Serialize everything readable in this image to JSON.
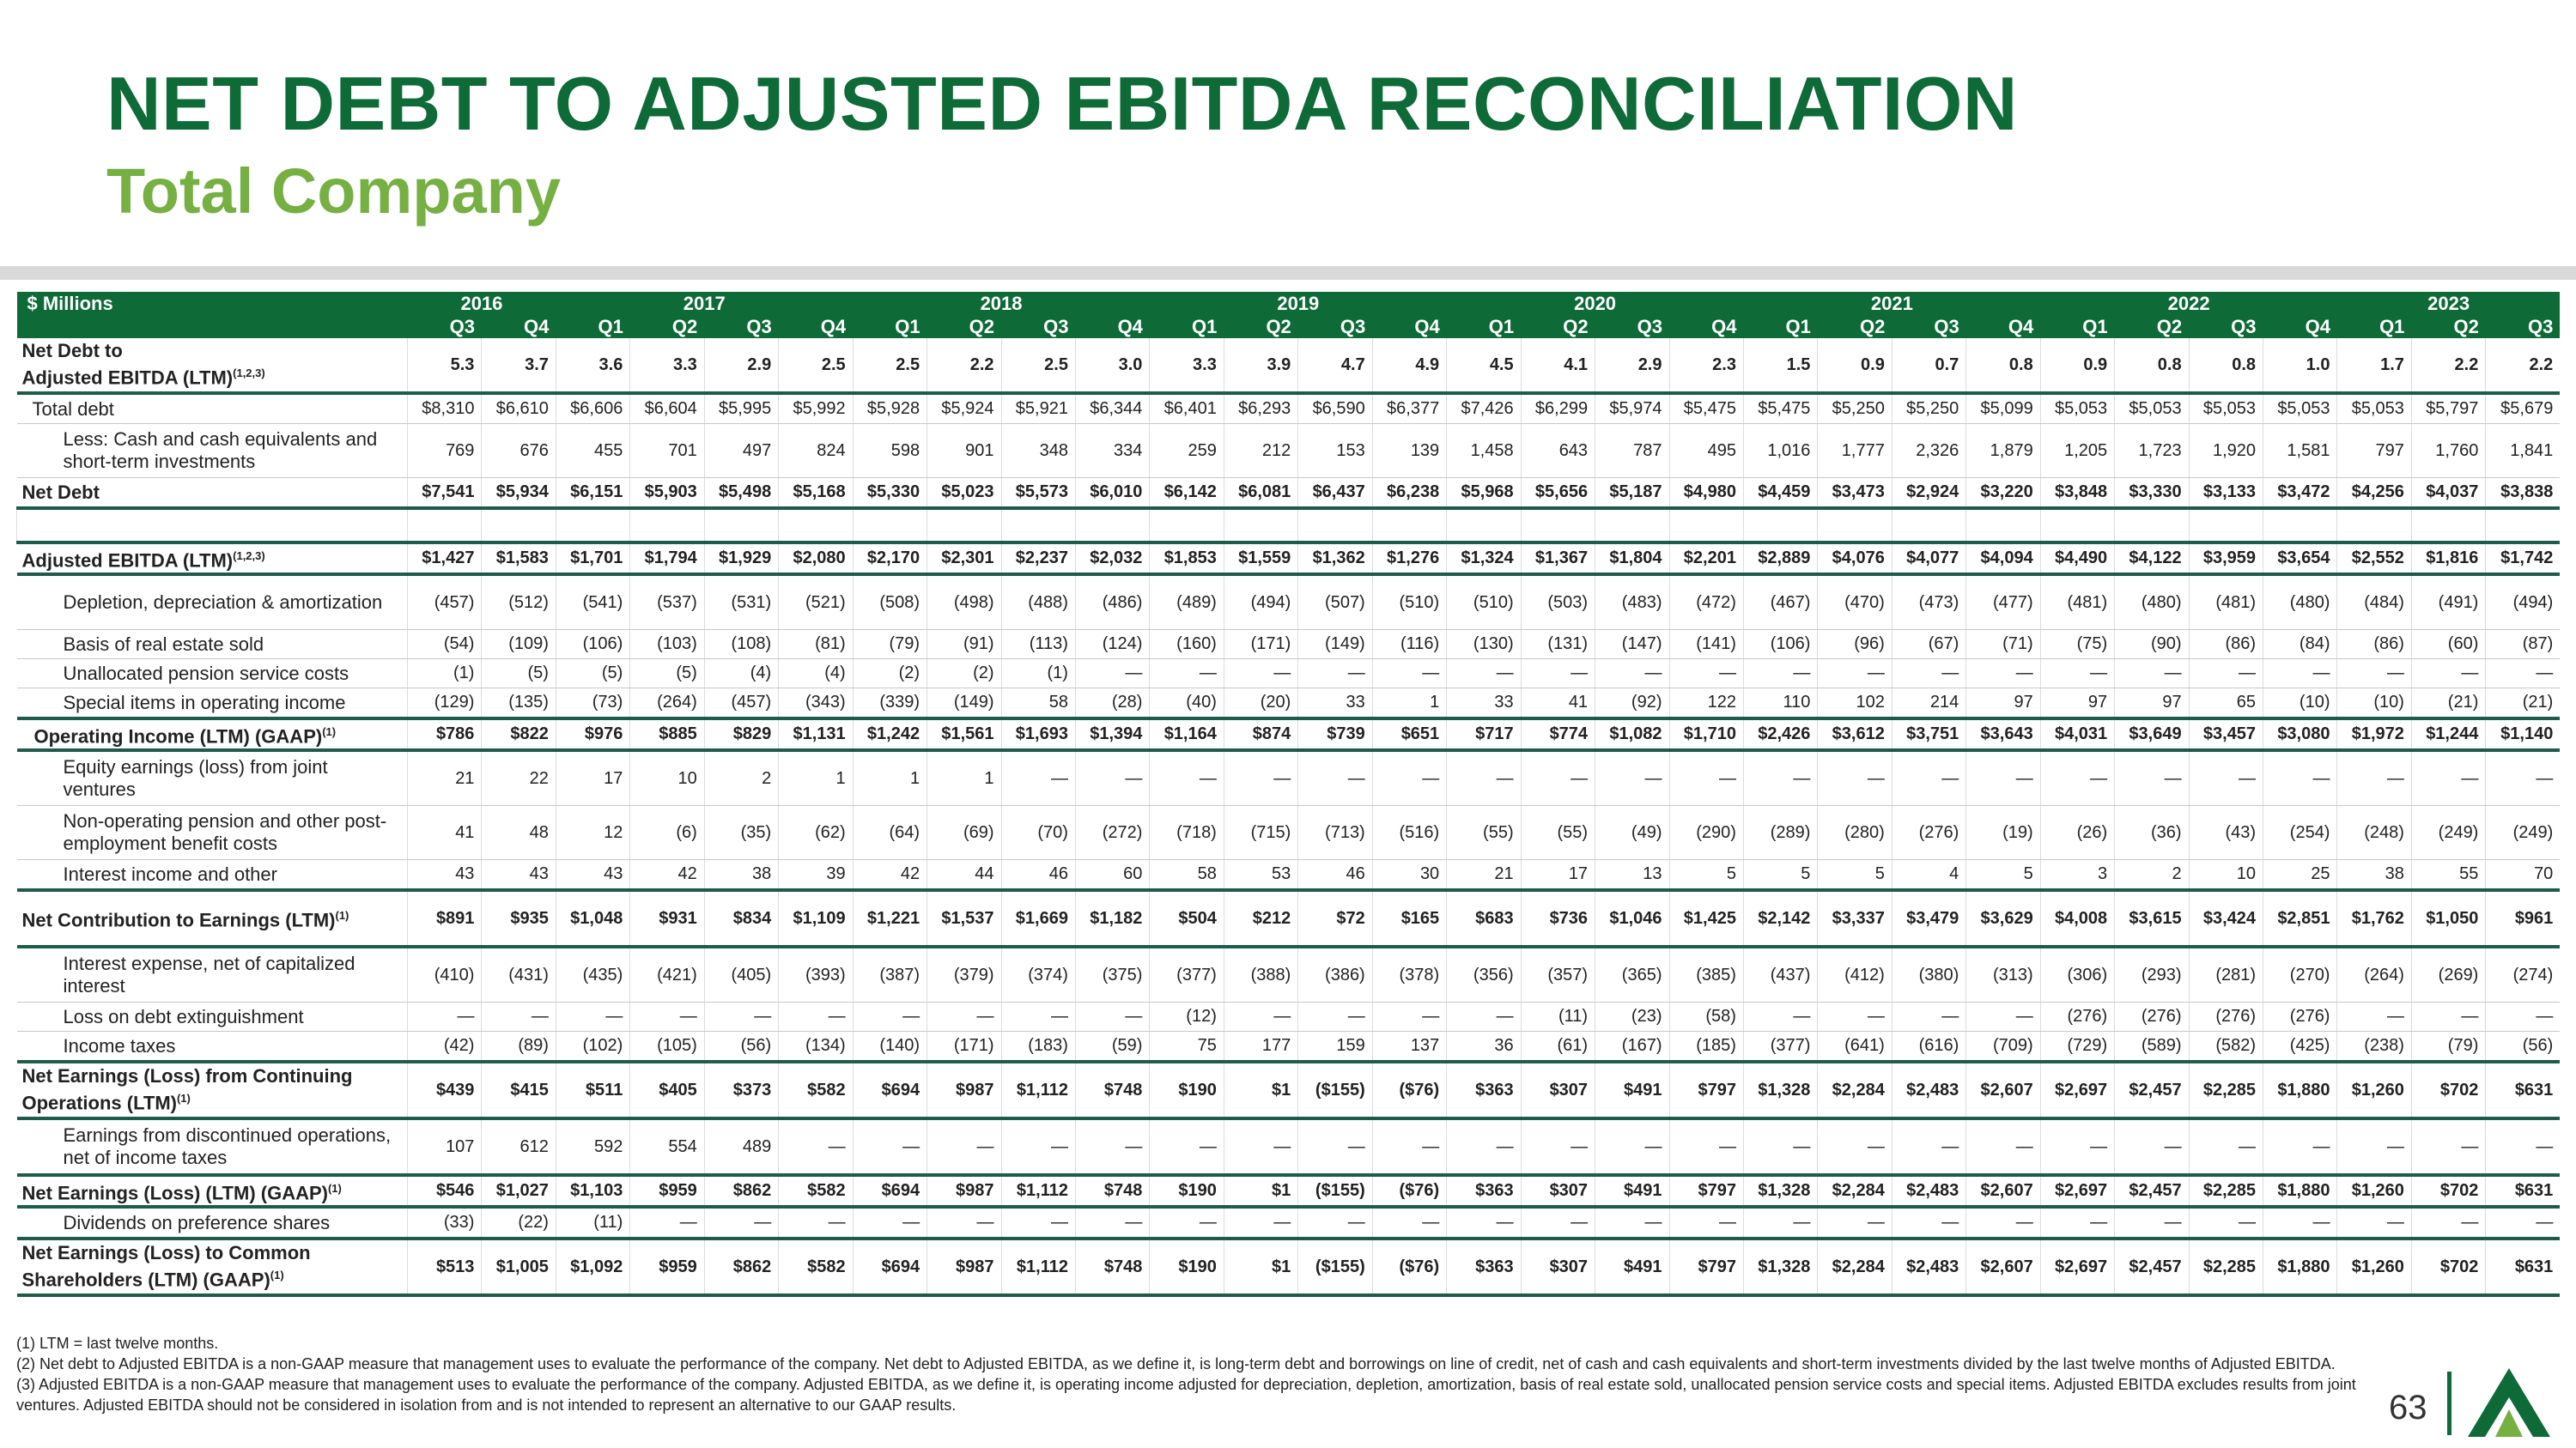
{
  "header": {
    "title": "NET DEBT TO ADJUSTED EBITDA RECONCILIATION",
    "subtitle": "Total Company"
  },
  "table": {
    "unit_label": "$ Millions",
    "years": [
      {
        "year": "2016",
        "quarters": [
          "Q3",
          "Q4"
        ]
      },
      {
        "year": "2017",
        "quarters": [
          "Q1",
          "Q2",
          "Q3",
          "Q4"
        ]
      },
      {
        "year": "2018",
        "quarters": [
          "Q1",
          "Q2",
          "Q3",
          "Q4"
        ]
      },
      {
        "year": "2019",
        "quarters": [
          "Q1",
          "Q2",
          "Q3",
          "Q4"
        ]
      },
      {
        "year": "2020",
        "quarters": [
          "Q1",
          "Q2",
          "Q3",
          "Q4"
        ]
      },
      {
        "year": "2021",
        "quarters": [
          "Q1",
          "Q2",
          "Q3",
          "Q4"
        ]
      },
      {
        "year": "2022",
        "quarters": [
          "Q1",
          "Q2",
          "Q3",
          "Q4"
        ]
      },
      {
        "year": "2023",
        "quarters": [
          "Q1",
          "Q2",
          "Q3"
        ]
      }
    ],
    "rows": [
      {
        "label": "Net Debt to\nAdjusted EBITDA (LTM)",
        "sup": "(1,2,3)",
        "values": [
          "5.3",
          "3.7",
          "3.6",
          "3.3",
          "2.9",
          "2.5",
          "2.5",
          "2.2",
          "2.5",
          "3.0",
          "3.3",
          "3.9",
          "4.7",
          "4.9",
          "4.5",
          "4.1",
          "2.9",
          "2.3",
          "1.5",
          "0.9",
          "0.7",
          "0.8",
          "0.9",
          "0.8",
          "0.8",
          "1.0",
          "1.7",
          "2.2",
          "2.2"
        ]
      },
      {
        "label": "Total debt",
        "values": [
          "$8,310",
          "$6,610",
          "$6,606",
          "$6,604",
          "$5,995",
          "$5,992",
          "$5,928",
          "$5,924",
          "$5,921",
          "$6,344",
          "$6,401",
          "$6,293",
          "$6,590",
          "$6,377",
          "$7,426",
          "$6,299",
          "$5,974",
          "$5,475",
          "$5,475",
          "$5,250",
          "$5,250",
          "$5,099",
          "$5,053",
          "$5,053",
          "$5,053",
          "$5,053",
          "$5,053",
          "$5,797",
          "$5,679"
        ]
      },
      {
        "label": "Less: Cash and cash equivalents and short-term investments",
        "values": [
          "769",
          "676",
          "455",
          "701",
          "497",
          "824",
          "598",
          "901",
          "348",
          "334",
          "259",
          "212",
          "153",
          "139",
          "1,458",
          "643",
          "787",
          "495",
          "1,016",
          "1,777",
          "2,326",
          "1,879",
          "1,205",
          "1,723",
          "1,920",
          "1,581",
          "797",
          "1,760",
          "1,841"
        ]
      },
      {
        "label": "Net Debt",
        "values": [
          "$7,541",
          "$5,934",
          "$6,151",
          "$5,903",
          "$5,498",
          "$5,168",
          "$5,330",
          "$5,023",
          "$5,573",
          "$6,010",
          "$6,142",
          "$6,081",
          "$6,437",
          "$6,238",
          "$5,968",
          "$5,656",
          "$5,187",
          "$4,980",
          "$4,459",
          "$3,473",
          "$2,924",
          "$3,220",
          "$3,848",
          "$3,330",
          "$3,133",
          "$3,472",
          "$4,256",
          "$4,037",
          "$3,838"
        ]
      },
      {
        "label": "Adjusted EBITDA (LTM)",
        "sup": "(1,2,3)",
        "values": [
          "$1,427",
          "$1,583",
          "$1,701",
          "$1,794",
          "$1,929",
          "$2,080",
          "$2,170",
          "$2,301",
          "$2,237",
          "$2,032",
          "$1,853",
          "$1,559",
          "$1,362",
          "$1,276",
          "$1,324",
          "$1,367",
          "$1,804",
          "$2,201",
          "$2,889",
          "$4,076",
          "$4,077",
          "$4,094",
          "$4,490",
          "$4,122",
          "$3,959",
          "$3,654",
          "$2,552",
          "$1,816",
          "$1,742"
        ]
      },
      {
        "label": "Depletion, depreciation & amortization",
        "values": [
          "(457)",
          "(512)",
          "(541)",
          "(537)",
          "(531)",
          "(521)",
          "(508)",
          "(498)",
          "(488)",
          "(486)",
          "(489)",
          "(494)",
          "(507)",
          "(510)",
          "(510)",
          "(503)",
          "(483)",
          "(472)",
          "(467)",
          "(470)",
          "(473)",
          "(477)",
          "(481)",
          "(480)",
          "(481)",
          "(480)",
          "(484)",
          "(491)",
          "(494)"
        ]
      },
      {
        "label": "Basis of real estate sold",
        "values": [
          "(54)",
          "(109)",
          "(106)",
          "(103)",
          "(108)",
          "(81)",
          "(79)",
          "(91)",
          "(113)",
          "(124)",
          "(160)",
          "(171)",
          "(149)",
          "(116)",
          "(130)",
          "(131)",
          "(147)",
          "(141)",
          "(106)",
          "(96)",
          "(67)",
          "(71)",
          "(75)",
          "(90)",
          "(86)",
          "(84)",
          "(86)",
          "(60)",
          "(87)"
        ]
      },
      {
        "label": "Unallocated pension service costs",
        "values": [
          "(1)",
          "(5)",
          "(5)",
          "(5)",
          "(4)",
          "(4)",
          "(2)",
          "(2)",
          "(1)",
          "—",
          "—",
          "—",
          "—",
          "—",
          "—",
          "—",
          "—",
          "—",
          "—",
          "—",
          "—",
          "—",
          "—",
          "—",
          "—",
          "—",
          "—",
          "—",
          "—"
        ]
      },
      {
        "label": "Special items in operating income",
        "values": [
          "(129)",
          "(135)",
          "(73)",
          "(264)",
          "(457)",
          "(343)",
          "(339)",
          "(149)",
          "58",
          "(28)",
          "(40)",
          "(20)",
          "33",
          "1",
          "33",
          "41",
          "(92)",
          "122",
          "110",
          "102",
          "214",
          "97",
          "97",
          "97",
          "65",
          "(10)",
          "(10)",
          "(21)",
          "(21)"
        ]
      },
      {
        "label": "Operating Income (LTM) (GAAP)",
        "sup": "(1)",
        "values": [
          "$786",
          "$822",
          "$976",
          "$885",
          "$829",
          "$1,131",
          "$1,242",
          "$1,561",
          "$1,693",
          "$1,394",
          "$1,164",
          "$874",
          "$739",
          "$651",
          "$717",
          "$774",
          "$1,082",
          "$1,710",
          "$2,426",
          "$3,612",
          "$3,751",
          "$3,643",
          "$4,031",
          "$3,649",
          "$3,457",
          "$3,080",
          "$1,972",
          "$1,244",
          "$1,140"
        ]
      },
      {
        "label": "Equity earnings (loss) from joint ventures",
        "values": [
          "21",
          "22",
          "17",
          "10",
          "2",
          "1",
          "1",
          "1",
          "—",
          "—",
          "—",
          "—",
          "—",
          "—",
          "—",
          "—",
          "—",
          "—",
          "—",
          "—",
          "—",
          "—",
          "—",
          "—",
          "—",
          "—",
          "—",
          "—",
          "—"
        ]
      },
      {
        "label": "Non-operating pension and other post-employment benefit costs",
        "values": [
          "41",
          "48",
          "12",
          "(6)",
          "(35)",
          "(62)",
          "(64)",
          "(69)",
          "(70)",
          "(272)",
          "(718)",
          "(715)",
          "(713)",
          "(516)",
          "(55)",
          "(55)",
          "(49)",
          "(290)",
          "(289)",
          "(280)",
          "(276)",
          "(19)",
          "(26)",
          "(36)",
          "(43)",
          "(254)",
          "(248)",
          "(249)",
          "(249)"
        ]
      },
      {
        "label": "Interest income and other",
        "values": [
          "43",
          "43",
          "43",
          "42",
          "38",
          "39",
          "42",
          "44",
          "46",
          "60",
          "58",
          "53",
          "46",
          "30",
          "21",
          "17",
          "13",
          "5",
          "5",
          "5",
          "4",
          "5",
          "3",
          "2",
          "10",
          "25",
          "38",
          "55",
          "70"
        ]
      },
      {
        "label": "Net Contribution to Earnings (LTM)",
        "sup": "(1)",
        "values": [
          "$891",
          "$935",
          "$1,048",
          "$931",
          "$834",
          "$1,109",
          "$1,221",
          "$1,537",
          "$1,669",
          "$1,182",
          "$504",
          "$212",
          "$72",
          "$165",
          "$683",
          "$736",
          "$1,046",
          "$1,425",
          "$2,142",
          "$3,337",
          "$3,479",
          "$3,629",
          "$4,008",
          "$3,615",
          "$3,424",
          "$2,851",
          "$1,762",
          "$1,050",
          "$961"
        ]
      },
      {
        "label": "Interest expense, net of capitalized interest",
        "values": [
          "(410)",
          "(431)",
          "(435)",
          "(421)",
          "(405)",
          "(393)",
          "(387)",
          "(379)",
          "(374)",
          "(375)",
          "(377)",
          "(388)",
          "(386)",
          "(378)",
          "(356)",
          "(357)",
          "(365)",
          "(385)",
          "(437)",
          "(412)",
          "(380)",
          "(313)",
          "(306)",
          "(293)",
          "(281)",
          "(270)",
          "(264)",
          "(269)",
          "(274)"
        ]
      },
      {
        "label": "Loss on debt extinguishment",
        "values": [
          "—",
          "—",
          "—",
          "—",
          "—",
          "—",
          "—",
          "—",
          "—",
          "—",
          "(12)",
          "—",
          "—",
          "—",
          "—",
          "(11)",
          "(23)",
          "(58)",
          "—",
          "—",
          "—",
          "—",
          "(276)",
          "(276)",
          "(276)",
          "(276)",
          "—",
          "—",
          "—"
        ]
      },
      {
        "label": "Income taxes",
        "values": [
          "(42)",
          "(89)",
          "(102)",
          "(105)",
          "(56)",
          "(134)",
          "(140)",
          "(171)",
          "(183)",
          "(59)",
          "75",
          "177",
          "159",
          "137",
          "36",
          "(61)",
          "(167)",
          "(185)",
          "(377)",
          "(641)",
          "(616)",
          "(709)",
          "(729)",
          "(589)",
          "(582)",
          "(425)",
          "(238)",
          "(79)",
          "(56)"
        ]
      },
      {
        "label": "Net Earnings (Loss) from Continuing Operations (LTM)",
        "sup": "(1)",
        "values": [
          "$439",
          "$415",
          "$511",
          "$405",
          "$373",
          "$582",
          "$694",
          "$987",
          "$1,112",
          "$748",
          "$190",
          "$1",
          "($155)",
          "($76)",
          "$363",
          "$307",
          "$491",
          "$797",
          "$1,328",
          "$2,284",
          "$2,483",
          "$2,607",
          "$2,697",
          "$2,457",
          "$2,285",
          "$1,880",
          "$1,260",
          "$702",
          "$631"
        ]
      },
      {
        "label": "Earnings from discontinued operations, net of income taxes",
        "values": [
          "107",
          "612",
          "592",
          "554",
          "489",
          "—",
          "—",
          "—",
          "—",
          "—",
          "—",
          "—",
          "—",
          "—",
          "—",
          "—",
          "—",
          "—",
          "—",
          "—",
          "—",
          "—",
          "—",
          "—",
          "—",
          "—",
          "—",
          "—",
          "—"
        ]
      },
      {
        "label": "Net Earnings (Loss) (LTM) (GAAP)",
        "sup": "(1)",
        "values": [
          "$546",
          "$1,027",
          "$1,103",
          "$959",
          "$862",
          "$582",
          "$694",
          "$987",
          "$1,112",
          "$748",
          "$190",
          "$1",
          "($155)",
          "($76)",
          "$363",
          "$307",
          "$491",
          "$797",
          "$1,328",
          "$2,284",
          "$2,483",
          "$2,607",
          "$2,697",
          "$2,457",
          "$2,285",
          "$1,880",
          "$1,260",
          "$702",
          "$631"
        ]
      },
      {
        "label": "Dividends on preference shares",
        "values": [
          "(33)",
          "(22)",
          "(11)",
          "—",
          "—",
          "—",
          "—",
          "—",
          "—",
          "—",
          "—",
          "—",
          "—",
          "—",
          "—",
          "—",
          "—",
          "—",
          "—",
          "—",
          "—",
          "—",
          "—",
          "—",
          "—",
          "—",
          "—",
          "—",
          "—"
        ]
      },
      {
        "label": "Net Earnings (Loss) to Common Shareholders (LTM) (GAAP)",
        "sup": "(1)",
        "values": [
          "$513",
          "$1,005",
          "$1,092",
          "$959",
          "$862",
          "$582",
          "$694",
          "$987",
          "$1,112",
          "$748",
          "$190",
          "$1",
          "($155)",
          "($76)",
          "$363",
          "$307",
          "$491",
          "$797",
          "$1,328",
          "$2,284",
          "$2,483",
          "$2,607",
          "$2,697",
          "$2,457",
          "$2,285",
          "$1,880",
          "$1,260",
          "$702",
          "$631"
        ]
      }
    ]
  },
  "footnotes": [
    "(1) LTM = last twelve months.",
    "(2) Net debt to Adjusted EBITDA is a non-GAAP measure that management uses to evaluate the performance of the company. Net debt to Adjusted EBITDA, as we define it, is long-term debt and borrowings on line of credit, net of cash and cash equivalents and short-term investments divided by the last twelve months of Adjusted EBITDA.",
    "(3) Adjusted EBITDA is a non-GAAP measure that management uses to evaluate the performance of the company. Adjusted EBITDA, as we define it, is operating income adjusted for depreciation, depletion, amortization, basis of real estate sold, unallocated pension service costs and special items. Adjusted EBITDA excludes results from joint ventures. Adjusted EBITDA should not be considered in isolation from and is not intended to represent an alternative to our GAAP results."
  ],
  "page_number": "63"
}
